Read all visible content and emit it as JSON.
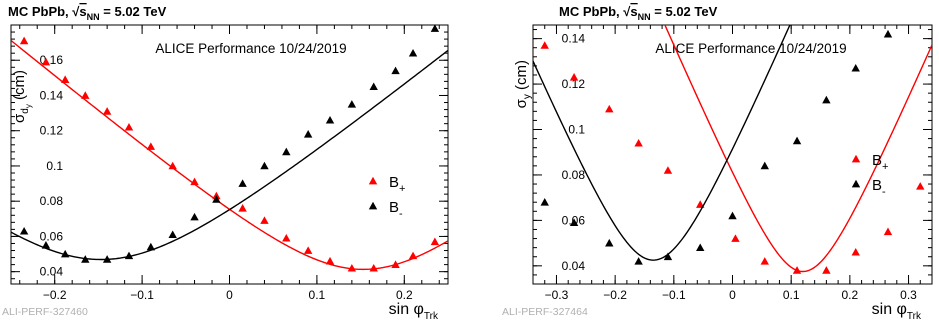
{
  "chart_data": [
    {
      "type": "scatter",
      "header": {
        "prefix": "MC PbPb,",
        "sqrt_symbol": "√",
        "s_main": "s",
        "s_sub": "NN",
        "energy": "= 5.02 TeV"
      },
      "annotation": "ALICE Performance 10/24/2019",
      "corner_label": "ALI-PERF-327460",
      "ylabel": {
        "main": "σ",
        "sub": "d",
        "subsub": "y",
        "unit": "(cm)"
      },
      "xlabel": {
        "main": "sin φ",
        "sub": "Trk"
      },
      "xlim": [
        -0.25,
        0.25
      ],
      "ylim": [
        0.033,
        0.18
      ],
      "xticks": [
        -0.2,
        -0.1,
        0,
        0.1,
        0.2
      ],
      "xtick_labels": [
        "−0.2",
        "−0.1",
        "0",
        "0.1",
        "0.2"
      ],
      "yticks": [
        0.04,
        0.06,
        0.08,
        0.1,
        0.12,
        0.14,
        0.16
      ],
      "ytick_labels": [
        "0.04",
        "0.06",
        "0.08",
        "0.1",
        "0.12",
        "0.14",
        "0.16"
      ],
      "legend": [
        {
          "label": "B",
          "sub": "+",
          "color": "#ff0000"
        },
        {
          "label": "B",
          "sub": "-",
          "color": "#000000"
        }
      ],
      "series": [
        {
          "color": "#ff0000",
          "fit_color": "#ff0000",
          "x": [
            -0.235,
            -0.21,
            -0.188,
            -0.165,
            -0.14,
            -0.115,
            -0.09,
            -0.065,
            -0.04,
            -0.015,
            0.015,
            0.04,
            0.065,
            0.09,
            0.115,
            0.14,
            0.165,
            0.19,
            0.21,
            0.235
          ],
          "y": [
            0.171,
            0.159,
            0.149,
            0.14,
            0.131,
            0.122,
            0.111,
            0.1,
            0.091,
            0.083,
            0.076,
            0.069,
            0.059,
            0.052,
            0.046,
            0.042,
            0.042,
            0.044,
            0.049,
            0.057
          ],
          "fit": {
            "x0": 0.153,
            "a": 0.0413,
            "b": 0.0017
          }
        },
        {
          "color": "#000000",
          "fit_color": "#000000",
          "x": [
            -0.235,
            -0.21,
            -0.188,
            -0.165,
            -0.14,
            -0.115,
            -0.09,
            -0.065,
            -0.04,
            -0.015,
            0.015,
            0.04,
            0.065,
            0.09,
            0.115,
            0.14,
            0.165,
            0.19,
            0.21,
            0.235
          ],
          "y": [
            0.063,
            0.055,
            0.05,
            0.047,
            0.047,
            0.049,
            0.054,
            0.061,
            0.071,
            0.081,
            0.09,
            0.1,
            0.108,
            0.118,
            0.126,
            0.135,
            0.145,
            0.154,
            0.164,
            0.178
          ],
          "fit": {
            "x0": -0.147,
            "a": 0.0469,
            "b": 0.0016
          }
        }
      ]
    },
    {
      "type": "scatter",
      "header": {
        "prefix": "MC PbPb,",
        "sqrt_symbol": "√",
        "s_main": "s",
        "s_sub": "NN",
        "energy": "= 5.02 TeV"
      },
      "annotation": "ALICE Performance 10/24/2019",
      "corner_label": "ALI-PERF-327464",
      "ylabel": {
        "main": "σ",
        "sub": "y",
        "subsub": "",
        "unit": "(cm)"
      },
      "xlabel": {
        "main": "sin φ",
        "sub": "Trk"
      },
      "xlim": [
        -0.34,
        0.34
      ],
      "ylim": [
        0.032,
        0.146
      ],
      "xticks": [
        -0.3,
        -0.2,
        -0.1,
        0,
        0.1,
        0.2,
        0.3
      ],
      "xtick_labels": [
        "−0.3",
        "−0.2",
        "−0.1",
        "0",
        "0.1",
        "0.2",
        "0.3"
      ],
      "yticks": [
        0.04,
        0.06,
        0.08,
        0.1,
        0.12,
        0.14
      ],
      "ytick_labels": [
        "0.04",
        "0.06",
        "0.08",
        "0.1",
        "0.12",
        "0.14"
      ],
      "legend": [
        {
          "label": "B",
          "sub": "+",
          "color": "#ff0000"
        },
        {
          "label": "B",
          "sub": "-",
          "color": "#000000"
        }
      ],
      "series": [
        {
          "color": "#ff0000",
          "fit_color": "#ff0000",
          "x": [
            -0.32,
            -0.27,
            -0.21,
            -0.16,
            -0.11,
            -0.055,
            0.005,
            0.055,
            0.11,
            0.16,
            0.21,
            0.265,
            0.32
          ],
          "y": [
            0.137,
            0.123,
            0.109,
            0.094,
            0.082,
            0.067,
            0.052,
            0.042,
            0.038,
            0.038,
            0.046,
            0.055,
            0.075
          ],
          "fit": {
            "x0": 0.12,
            "a": 0.0375,
            "b": 0.0036
          }
        },
        {
          "color": "#000000",
          "fit_color": "#000000",
          "x": [
            -0.32,
            -0.27,
            -0.21,
            -0.16,
            -0.11,
            -0.055,
            0.0,
            0.055,
            0.11,
            0.16,
            0.21,
            0.265
          ],
          "y": [
            0.068,
            0.059,
            0.05,
            0.042,
            0.044,
            0.048,
            0.062,
            0.084,
            0.095,
            0.113,
            0.127,
            0.142
          ],
          "fit": {
            "x0": -0.135,
            "a": 0.0425,
            "b": 0.0036
          }
        }
      ]
    }
  ]
}
